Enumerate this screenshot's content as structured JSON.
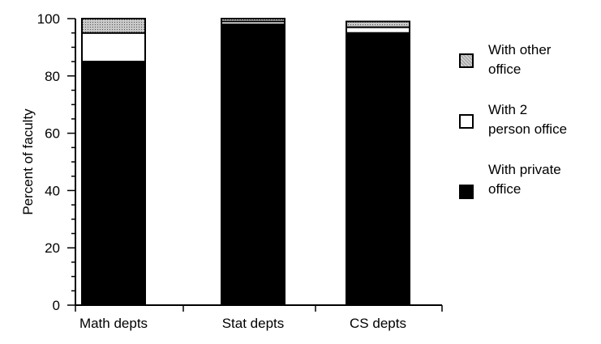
{
  "chart_data": {
    "type": "bar",
    "stacked": true,
    "categories": [
      "Math depts",
      "Stat depts",
      "CS depts"
    ],
    "series": [
      {
        "name": "With private office",
        "key": "private",
        "values": [
          85,
          98,
          95
        ],
        "color": "#000000"
      },
      {
        "name": "With 2 person office",
        "key": "two",
        "values": [
          10,
          1,
          2
        ],
        "color": "#ffffff"
      },
      {
        "name": "With other office",
        "key": "other",
        "values": [
          5,
          1,
          2
        ],
        "color": "#aaaaaa"
      }
    ],
    "title": "",
    "xlabel": "",
    "ylabel": "Percent of faculty",
    "ylim": [
      0,
      100
    ],
    "yticks": [
      0,
      20,
      40,
      60,
      80,
      100
    ],
    "grid": false,
    "legend_position": "right"
  },
  "legend": {
    "other": {
      "line1": "With other",
      "line2": "office",
      "color": "#aaaaaa"
    },
    "two": {
      "line1": "With 2",
      "line2": "person office",
      "color": "#ffffff"
    },
    "private": {
      "line1": "With private",
      "line2": "office",
      "color": "#000000"
    }
  }
}
